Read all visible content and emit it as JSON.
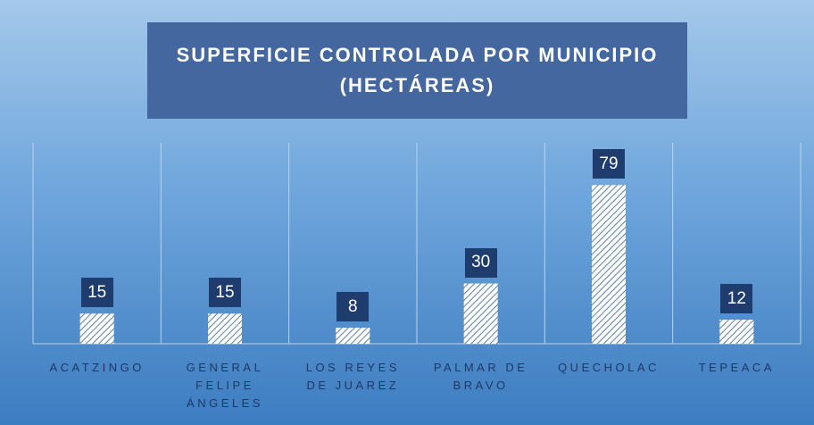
{
  "chart_data": {
    "type": "bar",
    "title": "SUPERFICIE CONTROLADA POR MUNICIPIO (HECTÁREAS)",
    "categories": [
      "ACATZINGO",
      "GENERAL FELIPE ÁNGELES",
      "LOS REYES DE JUAREZ",
      "PALMAR DE BRAVO",
      "QUECHOLAC",
      "TEPEACA"
    ],
    "values": [
      15,
      15,
      8,
      30,
      79,
      12
    ],
    "ylim": [
      0,
      100
    ]
  }
}
